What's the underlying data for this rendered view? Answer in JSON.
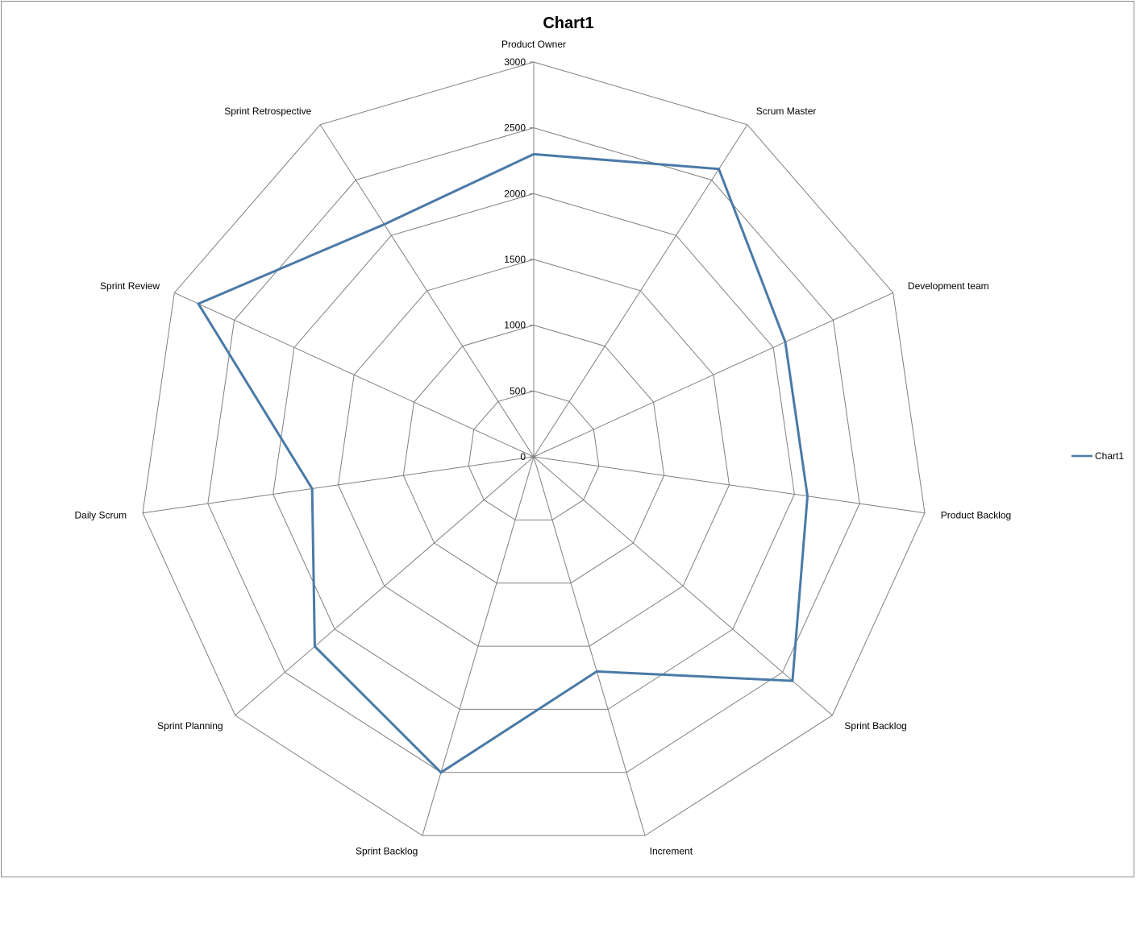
{
  "chart_data": {
    "type": "radar",
    "title": "Chart1",
    "categories": [
      "Product Owner",
      "Scrum Master",
      "Development team",
      "Product Backlog",
      "Sprint Backlog",
      "Increment",
      "Sprint Backlog",
      "Sprint Planning",
      "Daily Scrum",
      "Sprint Review",
      "Sprint Retrospective"
    ],
    "series": [
      {
        "name": "Chart1",
        "color": "#4a7aa7",
        "values": [
          2300,
          2600,
          2100,
          2100,
          2600,
          1700,
          2500,
          2200,
          1700,
          2800,
          2100
        ]
      }
    ],
    "rlim": [
      0,
      3000
    ],
    "ticks": [
      "0",
      "500",
      "1000",
      "1500",
      "2000",
      "2500",
      "3000"
    ],
    "grid_color": "#808080",
    "legend_position": "right",
    "legend_label": "Chart1"
  }
}
